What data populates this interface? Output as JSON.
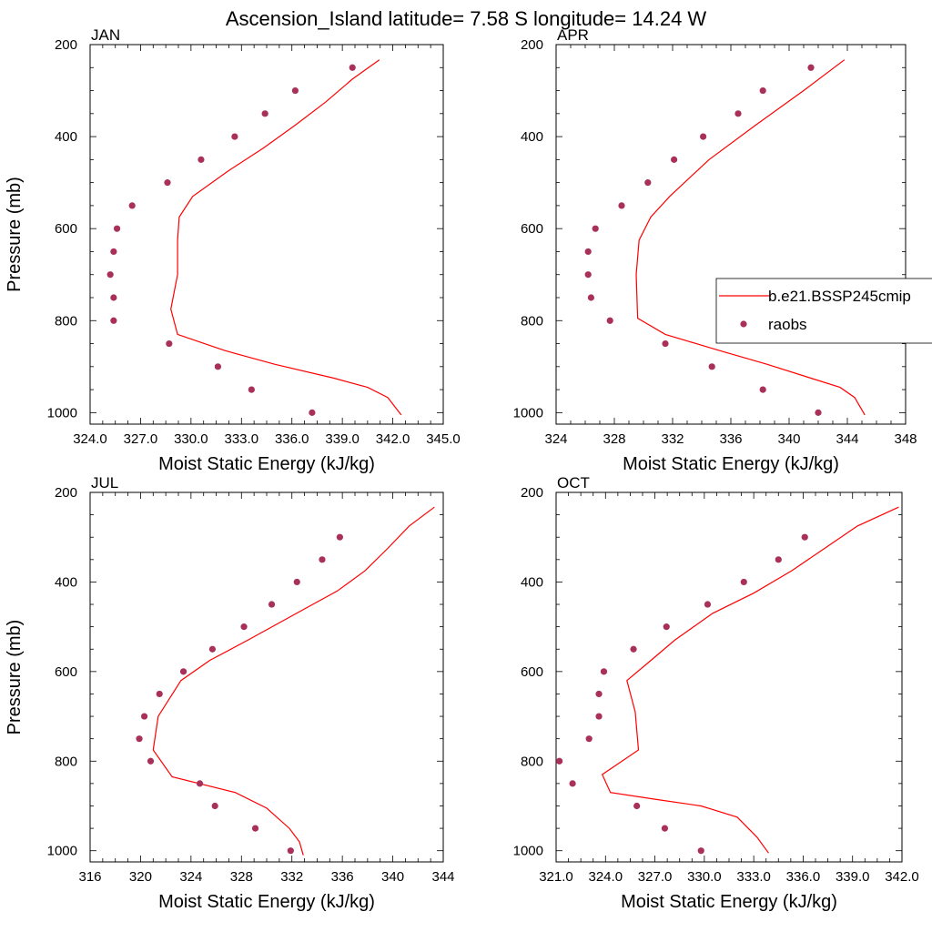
{
  "figure": {
    "title": "Ascension_Island  latitude= 7.58 S longitude= 14.24 W"
  },
  "colors": {
    "model": "#ff0000",
    "obs": "#a8305a",
    "axes": "#000000"
  },
  "legend": {
    "placement": "right of APR panel",
    "entries": [
      {
        "label": "b.e21.BSSP245cmip",
        "style": "line",
        "color": "#ff0000"
      },
      {
        "label": "raobs",
        "style": "marker",
        "color": "#a8305a"
      }
    ]
  },
  "chart_data": [
    {
      "type": "line",
      "title": "JAN",
      "xlabel": "Moist Static Energy (kJ/kg)",
      "ylabel": "Pressure (mb)",
      "xlim": [
        324,
        345
      ],
      "ylim": [
        1025,
        200
      ],
      "xticks": [
        "324.0",
        "327.0",
        "330.0",
        "333.0",
        "336.0",
        "339.0",
        "342.0",
        "345.0"
      ],
      "xtick_values": [
        324,
        327,
        330,
        333,
        336,
        339,
        342,
        345
      ],
      "yticks": [
        "200",
        "400",
        "600",
        "800",
        "1000"
      ],
      "ytick_values": [
        200,
        400,
        600,
        800,
        1000
      ],
      "series": [
        {
          "name": "b.e21.BSSP245cmip",
          "style": "line",
          "points": [
            [
              341.2,
              233
            ],
            [
              339.6,
              275
            ],
            [
              338.0,
              325
            ],
            [
              336.2,
              375
            ],
            [
              334.3,
              425
            ],
            [
              332.2,
              475
            ],
            [
              330.1,
              530
            ],
            [
              329.3,
              575
            ],
            [
              329.2,
              625
            ],
            [
              329.2,
              700
            ],
            [
              328.8,
              775
            ],
            [
              329.2,
              830
            ],
            [
              332.0,
              865
            ],
            [
              335.0,
              895
            ],
            [
              338.5,
              925
            ],
            [
              340.5,
              945
            ],
            [
              341.7,
              967
            ],
            [
              342.5,
              1005
            ]
          ]
        },
        {
          "name": "raobs",
          "style": "marker",
          "points": [
            [
              339.6,
              250
            ],
            [
              336.2,
              300
            ],
            [
              334.4,
              350
            ],
            [
              332.6,
              400
            ],
            [
              330.6,
              450
            ],
            [
              328.6,
              500
            ],
            [
              326.5,
              550
            ],
            [
              325.6,
              600
            ],
            [
              325.4,
              650
            ],
            [
              325.2,
              700
            ],
            [
              325.4,
              750
            ],
            [
              325.4,
              800
            ],
            [
              328.7,
              850
            ],
            [
              331.6,
              900
            ],
            [
              333.6,
              950
            ],
            [
              337.2,
              1000
            ]
          ]
        }
      ]
    },
    {
      "type": "line",
      "title": "APR",
      "xlabel": "Moist Static Energy (kJ/kg)",
      "ylabel": "",
      "xlim": [
        324,
        348
      ],
      "ylim": [
        1025,
        200
      ],
      "xticks": [
        "324",
        "328",
        "332",
        "336",
        "340",
        "344",
        "348"
      ],
      "xtick_values": [
        324,
        328,
        332,
        336,
        340,
        344,
        348
      ],
      "yticks": [
        "200",
        "400",
        "600",
        "800",
        "1000"
      ],
      "ytick_values": [
        200,
        400,
        600,
        800,
        1000
      ],
      "series": [
        {
          "name": "b.e21.BSSP245cmip",
          "style": "line",
          "points": [
            [
              343.8,
              233
            ],
            [
              341.0,
              300
            ],
            [
              337.7,
              375
            ],
            [
              334.5,
              450
            ],
            [
              331.8,
              530
            ],
            [
              330.5,
              575
            ],
            [
              329.7,
              625
            ],
            [
              329.5,
              700
            ],
            [
              329.6,
              795
            ],
            [
              331.5,
              830
            ],
            [
              335.2,
              865
            ],
            [
              338.5,
              895
            ],
            [
              341.5,
              925
            ],
            [
              343.5,
              945
            ],
            [
              344.5,
              967
            ],
            [
              345.2,
              1005
            ]
          ]
        },
        {
          "name": "raobs",
          "style": "marker",
          "points": [
            [
              341.5,
              250
            ],
            [
              338.2,
              300
            ],
            [
              336.5,
              350
            ],
            [
              334.1,
              400
            ],
            [
              332.1,
              450
            ],
            [
              330.3,
              500
            ],
            [
              328.5,
              550
            ],
            [
              326.7,
              600
            ],
            [
              326.2,
              650
            ],
            [
              326.2,
              700
            ],
            [
              326.4,
              750
            ],
            [
              327.7,
              800
            ],
            [
              331.5,
              850
            ],
            [
              334.7,
              900
            ],
            [
              338.2,
              950
            ],
            [
              342.0,
              1000
            ]
          ]
        }
      ]
    },
    {
      "type": "line",
      "title": "JUL",
      "xlabel": "Moist Static Energy (kJ/kg)",
      "ylabel": "Pressure (mb)",
      "xlim": [
        316,
        344
      ],
      "ylim": [
        1025,
        200
      ],
      "xticks": [
        "316",
        "320",
        "324",
        "328",
        "332",
        "336",
        "340",
        "344"
      ],
      "xtick_values": [
        316,
        320,
        324,
        328,
        332,
        336,
        340,
        344
      ],
      "yticks": [
        "200",
        "400",
        "600",
        "800",
        "1000"
      ],
      "ytick_values": [
        200,
        400,
        600,
        800,
        1000
      ],
      "series": [
        {
          "name": "b.e21.BSSP245cmip",
          "style": "line",
          "points": [
            [
              343.3,
              233
            ],
            [
              341.3,
              275
            ],
            [
              339.6,
              325
            ],
            [
              337.8,
              375
            ],
            [
              335.6,
              420
            ],
            [
              333.0,
              460
            ],
            [
              328.5,
              530
            ],
            [
              325.5,
              575
            ],
            [
              323.2,
              620
            ],
            [
              321.4,
              700
            ],
            [
              321.0,
              775
            ],
            [
              322.5,
              835
            ],
            [
              327.5,
              870
            ],
            [
              330.0,
              905
            ],
            [
              331.8,
              950
            ],
            [
              332.6,
              980
            ],
            [
              332.9,
              1010
            ]
          ]
        },
        {
          "name": "raobs",
          "style": "marker",
          "points": [
            [
              335.8,
              300
            ],
            [
              334.4,
              350
            ],
            [
              332.4,
              400
            ],
            [
              330.4,
              450
            ],
            [
              328.2,
              500
            ],
            [
              325.7,
              550
            ],
            [
              323.4,
              600
            ],
            [
              321.5,
              650
            ],
            [
              320.3,
              700
            ],
            [
              319.9,
              750
            ],
            [
              320.8,
              800
            ],
            [
              324.7,
              850
            ],
            [
              325.9,
              900
            ],
            [
              329.1,
              950
            ],
            [
              331.9,
              1000
            ]
          ]
        }
      ]
    },
    {
      "type": "line",
      "title": "OCT",
      "xlabel": "Moist Static Energy (kJ/kg)",
      "ylabel": "",
      "xlim": [
        321,
        342
      ],
      "ylim": [
        1025,
        200
      ],
      "xticks": [
        "321.0",
        "324.0",
        "327.0",
        "330.0",
        "333.0",
        "336.0",
        "339.0",
        "342.0"
      ],
      "xtick_values": [
        321,
        324,
        327,
        330,
        333,
        336,
        339,
        342
      ],
      "yticks": [
        "200",
        "400",
        "600",
        "800",
        "1000"
      ],
      "ytick_values": [
        200,
        400,
        600,
        800,
        1000
      ],
      "series": [
        {
          "name": "b.e21.BSSP245cmip",
          "style": "line",
          "points": [
            [
              341.8,
              233
            ],
            [
              339.3,
              275
            ],
            [
              337.3,
              325
            ],
            [
              335.3,
              375
            ],
            [
              333.0,
              425
            ],
            [
              330.5,
              470
            ],
            [
              328.2,
              530
            ],
            [
              326.6,
              580
            ],
            [
              325.3,
              620
            ],
            [
              325.8,
              690
            ],
            [
              326.0,
              775
            ],
            [
              323.8,
              830
            ],
            [
              324.3,
              870
            ],
            [
              327.0,
              885
            ],
            [
              329.8,
              900
            ],
            [
              332.0,
              925
            ],
            [
              333.2,
              970
            ],
            [
              333.9,
              1005
            ]
          ]
        },
        {
          "name": "raobs",
          "style": "marker",
          "points": [
            [
              336.1,
              300
            ],
            [
              334.5,
              350
            ],
            [
              332.4,
              400
            ],
            [
              330.2,
              450
            ],
            [
              327.7,
              500
            ],
            [
              325.7,
              550
            ],
            [
              323.9,
              600
            ],
            [
              323.6,
              650
            ],
            [
              323.6,
              700
            ],
            [
              323.0,
              750
            ],
            [
              321.2,
              800
            ],
            [
              322.0,
              850
            ],
            [
              325.9,
              900
            ],
            [
              327.6,
              950
            ],
            [
              329.8,
              1000
            ]
          ]
        }
      ]
    }
  ]
}
